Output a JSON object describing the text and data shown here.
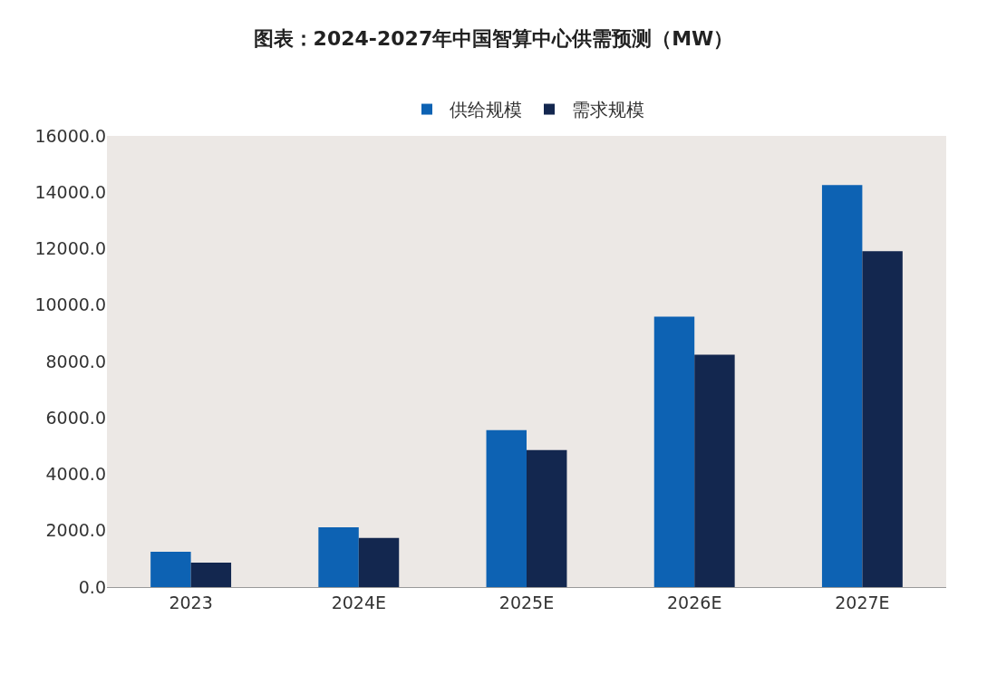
{
  "chart_data": {
    "type": "bar",
    "title": "图表：2024-2027年中国智算中心供需预测（MW）",
    "categories": [
      "2023",
      "2024E",
      "2025E",
      "2026E",
      "2027E"
    ],
    "series": [
      {
        "name": "供给规模",
        "color": "#0d62b3",
        "values": [
          1250,
          2120,
          5570,
          9590,
          14260
        ]
      },
      {
        "name": "需求规模",
        "color": "#13274f",
        "values": [
          870,
          1740,
          4860,
          8240,
          11910
        ]
      }
    ],
    "ylim": [
      0,
      16000
    ],
    "yticks": [
      {
        "value": 0,
        "label": "0.0"
      },
      {
        "value": 2000,
        "label": "2000.0"
      },
      {
        "value": 4000,
        "label": "4000.0"
      },
      {
        "value": 6000,
        "label": "6000.0"
      },
      {
        "value": 8000,
        "label": "8000.0"
      },
      {
        "value": 10000,
        "label": "10000.0"
      },
      {
        "value": 12000,
        "label": "12000.0"
      },
      {
        "value": 14000,
        "label": "14000.0"
      },
      {
        "value": 16000,
        "label": "16000.0"
      }
    ],
    "grid": false,
    "legend": "top"
  }
}
